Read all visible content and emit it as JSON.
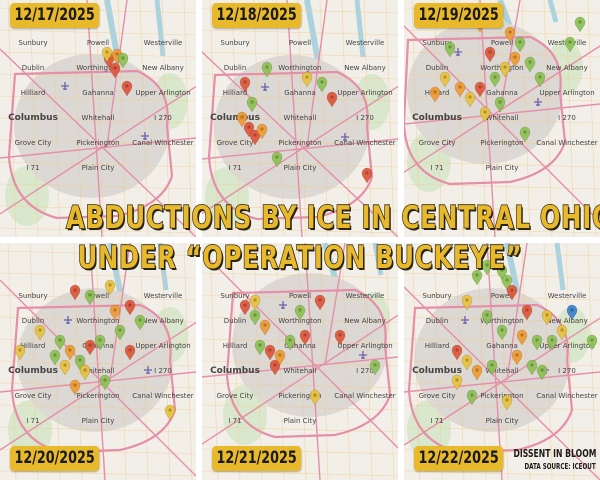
{
  "title": {
    "line1": "ABDUCTIONS BY ICE IN CENTRAL OHIO",
    "line2": "UNDER “OPERATION BUCKEYE”"
  },
  "credit": {
    "org": "DISSENT IN BLOOM",
    "source": "DATA SOURCE: ICEOUT"
  },
  "panels": [
    {
      "date": "12/17/2025"
    },
    {
      "date": "12/18/2025"
    },
    {
      "date": "12/19/2025"
    },
    {
      "date": "12/20/2025"
    },
    {
      "date": "12/21/2025"
    },
    {
      "date": "12/22/2025"
    }
  ],
  "map_labels": [
    "Sunbury",
    "Powell",
    "Westerville",
    "Dublin",
    "Worthington",
    "New Albany",
    "Hilliard",
    "Gahanna",
    "Upper Arlington",
    "Columbus",
    "Whitehall",
    "I 270",
    "Grove City",
    "Pickerington",
    "Canal Winchester",
    "I 71",
    "Plain City"
  ],
  "pin_colors": {
    "red": "#e0553a",
    "orange": "#f09a30",
    "yellow": "#e8c23c",
    "green": "#8cc152",
    "blue": "#3b7fd0"
  },
  "map_colors": {
    "land": "#f2efe9",
    "urban": "#dcd8d3",
    "road": "#e58fa8",
    "minor_road": "#f5c98a",
    "water": "#aad3df",
    "park": "#cfe6c0"
  }
}
